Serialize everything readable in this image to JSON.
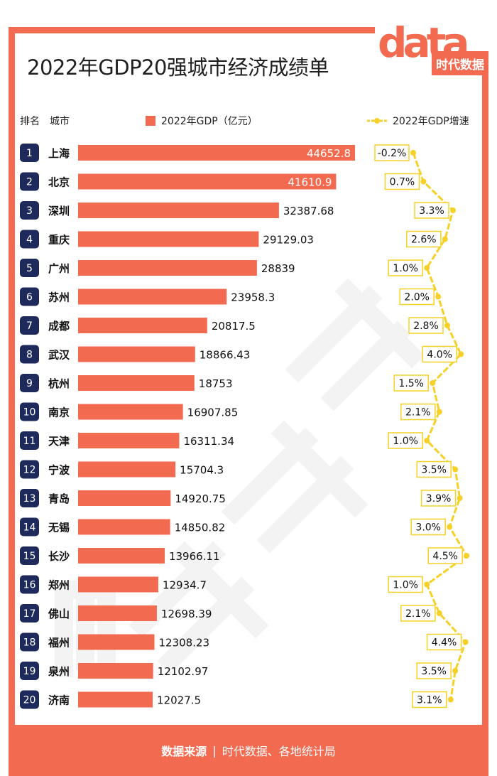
{
  "title": "2022年GDP20强城市经济成绩单",
  "logo": {
    "text": "data",
    "sub": "时代数据"
  },
  "headers": {
    "rank": "排名",
    "city": "城市",
    "gdp_legend": "2022年GDP（亿元）",
    "growth_legend": "2022年GDP增速"
  },
  "footer": {
    "label": "数据来源",
    "sep": "|",
    "source": "时代数据、各地统计局"
  },
  "colors": {
    "bar": "#f26a50",
    "badge": "#1f2a5c",
    "growth": "#f5d128"
  },
  "chart_data": {
    "type": "bar",
    "title": "2022年GDP20强城市经济成绩单",
    "orientation": "horizontal",
    "series": [
      {
        "name": "2022年GDP（亿元）",
        "values": [
          44652.8,
          41610.9,
          32387.68,
          29129.03,
          28839,
          23958.3,
          20817.5,
          18866.43,
          18753,
          16907.85,
          16311.34,
          15704.3,
          14920.75,
          14850.82,
          13966.11,
          12934.7,
          12698.39,
          12308.23,
          12102.97,
          12027.5
        ]
      },
      {
        "name": "2022年GDP增速",
        "values": [
          -0.2,
          0.7,
          3.3,
          2.6,
          1.0,
          2.0,
          2.8,
          4.0,
          1.5,
          2.1,
          1.0,
          3.5,
          3.9,
          3.0,
          4.5,
          1.0,
          2.1,
          4.4,
          3.5,
          3.1
        ]
      }
    ],
    "rows": [
      {
        "rank": "1",
        "city": "上海",
        "gdp": "44652.8",
        "growth": "-0.2%"
      },
      {
        "rank": "2",
        "city": "北京",
        "gdp": "41610.9",
        "growth": "0.7%"
      },
      {
        "rank": "3",
        "city": "深圳",
        "gdp": "32387.68",
        "growth": "3.3%"
      },
      {
        "rank": "4",
        "city": "重庆",
        "gdp": "29129.03",
        "growth": "2.6%"
      },
      {
        "rank": "5",
        "city": "广州",
        "gdp": "28839",
        "growth": "1.0%"
      },
      {
        "rank": "6",
        "city": "苏州",
        "gdp": "23958.3",
        "growth": "2.0%"
      },
      {
        "rank": "7",
        "city": "成都",
        "gdp": "20817.5",
        "growth": "2.8%"
      },
      {
        "rank": "8",
        "city": "武汉",
        "gdp": "18866.43",
        "growth": "4.0%"
      },
      {
        "rank": "9",
        "city": "杭州",
        "gdp": "18753",
        "growth": "1.5%"
      },
      {
        "rank": "10",
        "city": "南京",
        "gdp": "16907.85",
        "growth": "2.1%"
      },
      {
        "rank": "11",
        "city": "天津",
        "gdp": "16311.34",
        "growth": "1.0%"
      },
      {
        "rank": "12",
        "city": "宁波",
        "gdp": "15704.3",
        "growth": "3.5%"
      },
      {
        "rank": "13",
        "city": "青岛",
        "gdp": "14920.75",
        "growth": "3.9%"
      },
      {
        "rank": "14",
        "city": "无锡",
        "gdp": "14850.82",
        "growth": "3.0%"
      },
      {
        "rank": "15",
        "city": "长沙",
        "gdp": "13966.11",
        "growth": "4.5%"
      },
      {
        "rank": "16",
        "city": "郑州",
        "gdp": "12934.7",
        "growth": "1.0%"
      },
      {
        "rank": "17",
        "city": "佛山",
        "gdp": "12698.39",
        "growth": "2.1%"
      },
      {
        "rank": "18",
        "city": "福州",
        "gdp": "12308.23",
        "growth": "4.4%"
      },
      {
        "rank": "19",
        "city": "泉州",
        "gdp": "12102.97",
        "growth": "3.5%"
      },
      {
        "rank": "20",
        "city": "济南",
        "gdp": "12027.5",
        "growth": "3.1%"
      }
    ]
  }
}
